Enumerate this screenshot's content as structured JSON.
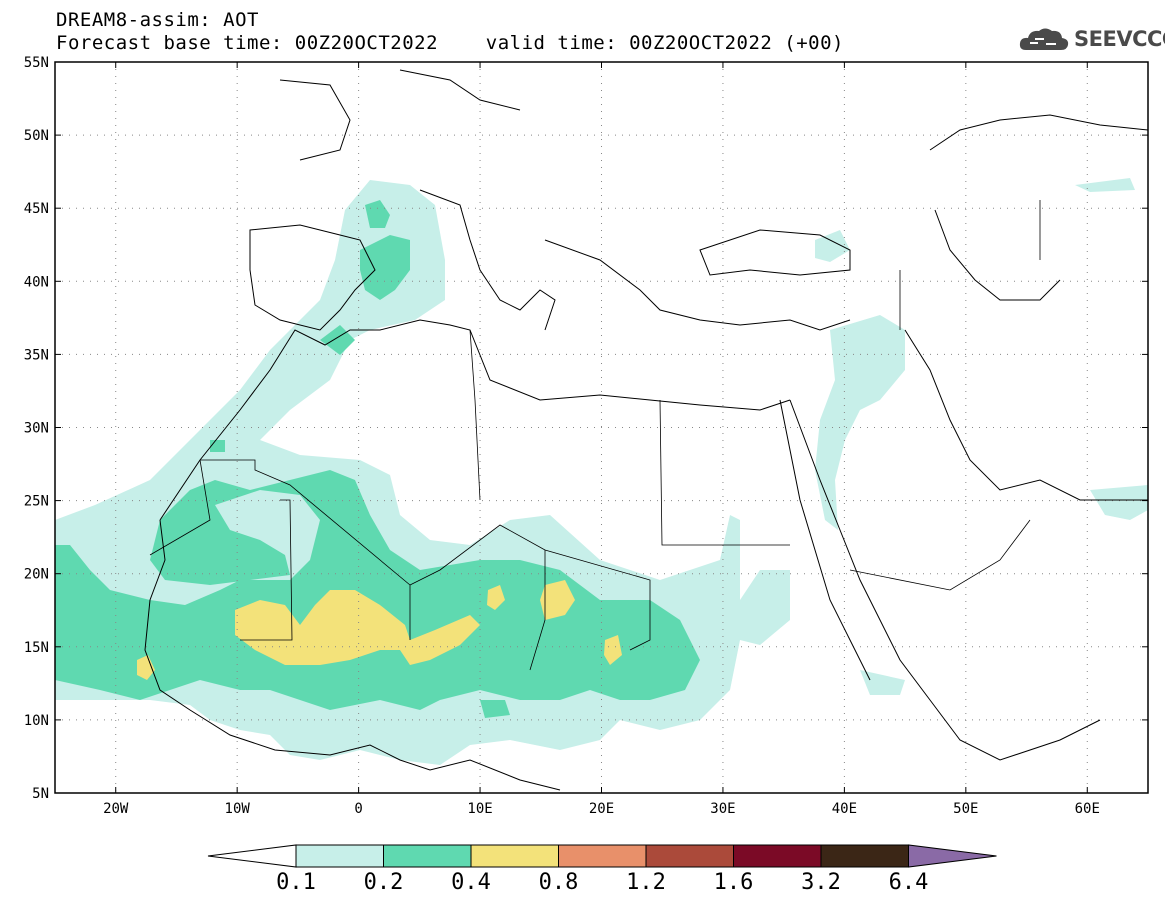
{
  "header": {
    "line1": "DREAM8-assim: AOT",
    "line2": "Forecast base time: 00Z20OCT2022    valid time: 00Z20OCT2022 (+00)"
  },
  "logo": {
    "icon": "cloud-icon",
    "text": "SEEVCCC"
  },
  "map": {
    "lon_range": [
      -25,
      65
    ],
    "lat_range": [
      5,
      55
    ],
    "lat_labels": [
      "5N",
      "10N",
      "15N",
      "20N",
      "25N",
      "30N",
      "35N",
      "40N",
      "45N",
      "50N",
      "55N"
    ],
    "lon_labels": [
      "20W",
      "10W",
      "0",
      "10E",
      "20E",
      "30E",
      "40E",
      "50E",
      "60E"
    ]
  },
  "colorbar": {
    "labels": [
      "0.1",
      "0.2",
      "0.4",
      "0.8",
      "1.2",
      "1.6",
      "3.2",
      "6.4"
    ],
    "colors": [
      "#ffffff",
      "#c7efe9",
      "#5fd9b0",
      "#f3e27a",
      "#e8906a",
      "#ab4a3a",
      "#7b0a26",
      "#3b2616",
      "#8a6aa6"
    ]
  },
  "colors": {
    "aot_0_1": "#c7efe9",
    "aot_0_2": "#5fd9b0",
    "aot_0_4": "#f3e27a"
  }
}
